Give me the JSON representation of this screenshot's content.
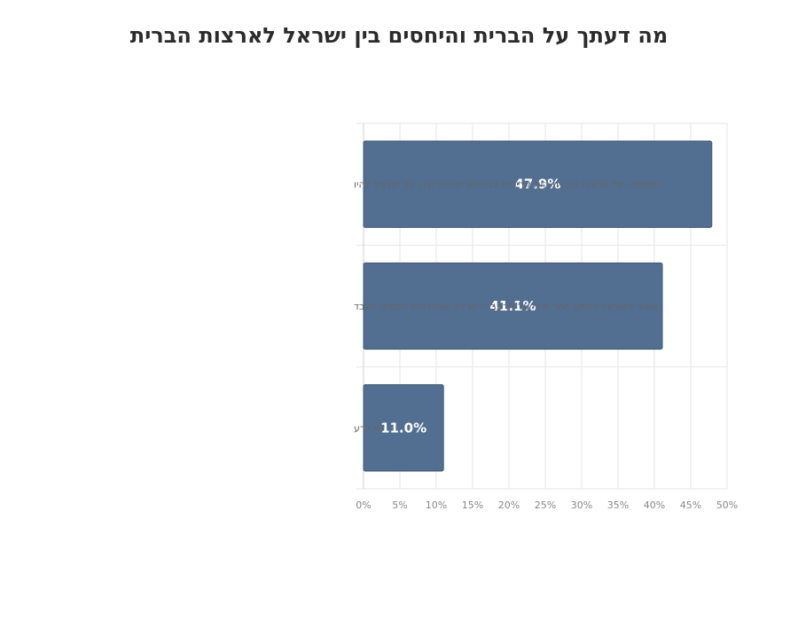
{
  "chart_data": {
    "type": "bar",
    "orientation": "horizontal",
    "title": "מה דעתך על הברית והיחסים בין ישראל לארצות הברית",
    "categories": [
      "התמיכה של ארצות הברית היא קריטית לביטחון ישראל ולכן על ישראל להיו",
      "אסור לישראל לסמוך יותר מידי על ארהב כי יש לה אינטרסים נוספים מלבד",
      "לא יודע"
    ],
    "values": [
      47.9,
      41.1,
      11.0
    ],
    "data_labels": [
      "47.9%",
      "41.1%",
      "11.0%"
    ],
    "xlim": [
      0,
      50
    ],
    "x_ticks": [
      0,
      5,
      10,
      15,
      20,
      25,
      30,
      35,
      40,
      45,
      50
    ],
    "x_tick_labels": [
      "0%",
      "5%",
      "10%",
      "15%",
      "20%",
      "25%",
      "30%",
      "35%",
      "40%",
      "45%",
      "50%"
    ],
    "grid": true,
    "legend": "none",
    "bar_color": "#526f91"
  }
}
